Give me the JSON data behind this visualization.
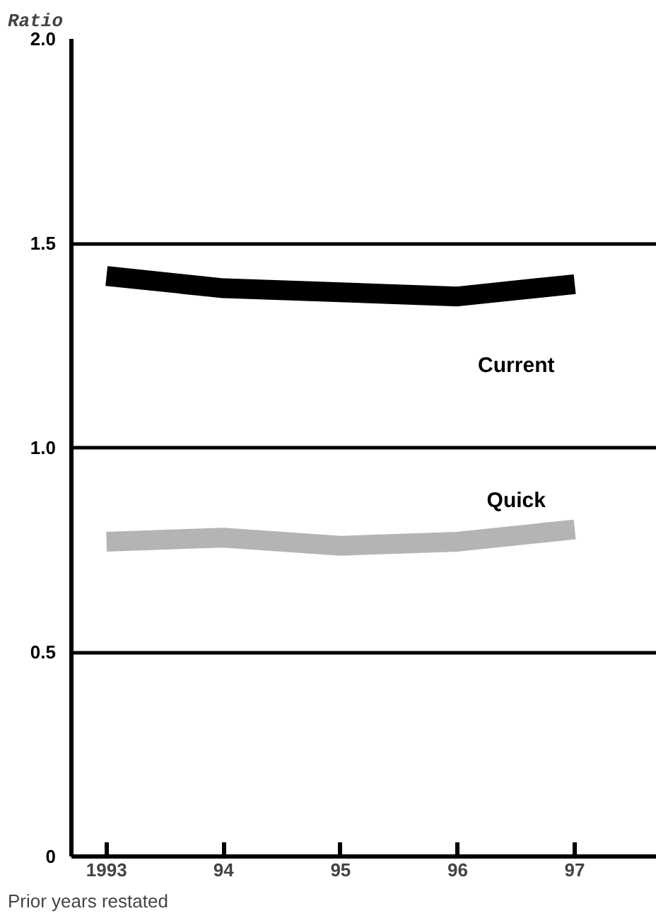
{
  "chart_data": {
    "type": "line",
    "ylabel": "Ratio",
    "categories": [
      "1993",
      "94",
      "95",
      "96",
      "97"
    ],
    "series": [
      {
        "name": "Current",
        "color": "#000000",
        "values": [
          1.42,
          1.39,
          1.38,
          1.37,
          1.4
        ]
      },
      {
        "name": "Quick",
        "color": "#b4b4b4",
        "values": [
          0.77,
          0.78,
          0.76,
          0.77,
          0.8
        ]
      }
    ],
    "ylim": [
      0,
      2
    ],
    "yticks": [
      0,
      0.5,
      {
        "value": 1,
        "label": "1.0"
      },
      1.5,
      {
        "value": 2,
        "label": "2.0"
      }
    ],
    "grid": "y",
    "marker": "none",
    "line_style": "solid",
    "annotations": [
      "Prior years restated"
    ]
  }
}
